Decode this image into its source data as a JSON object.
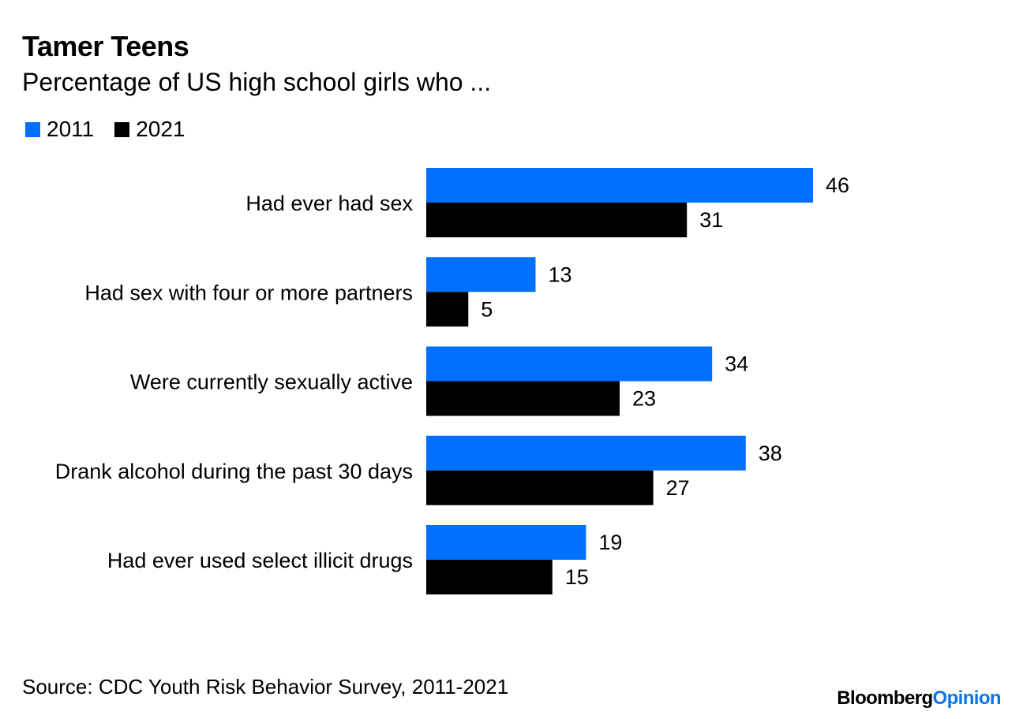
{
  "header": {
    "title": "Tamer Teens",
    "subtitle": "Percentage of US high school girls who ..."
  },
  "legend": [
    {
      "label": "2011",
      "color": "#0070ff"
    },
    {
      "label": "2021",
      "color": "#000000"
    }
  ],
  "chart_data": {
    "type": "bar",
    "orientation": "horizontal",
    "title": "Tamer Teens",
    "subtitle": "Percentage of US high school girls who ...",
    "categories": [
      "Had ever had sex",
      "Had sex with four or more partners",
      "Were currently sexually active",
      "Drank alcohol during the past 30 days",
      "Had ever used select illicit drugs"
    ],
    "series": [
      {
        "name": "2011",
        "color": "#0070ff",
        "values": [
          46,
          13,
          34,
          38,
          19
        ]
      },
      {
        "name": "2021",
        "color": "#000000",
        "values": [
          31,
          5,
          23,
          27,
          15
        ]
      }
    ],
    "xlim": [
      0,
      46
    ],
    "grid": false,
    "legend_position": "top-left",
    "data_labels": true
  },
  "footer": {
    "source": "Source: CDC Youth Risk Behavior Survey, 2011-2021",
    "logo_part1": "Bloomberg",
    "logo_part2": "Opinion"
  }
}
